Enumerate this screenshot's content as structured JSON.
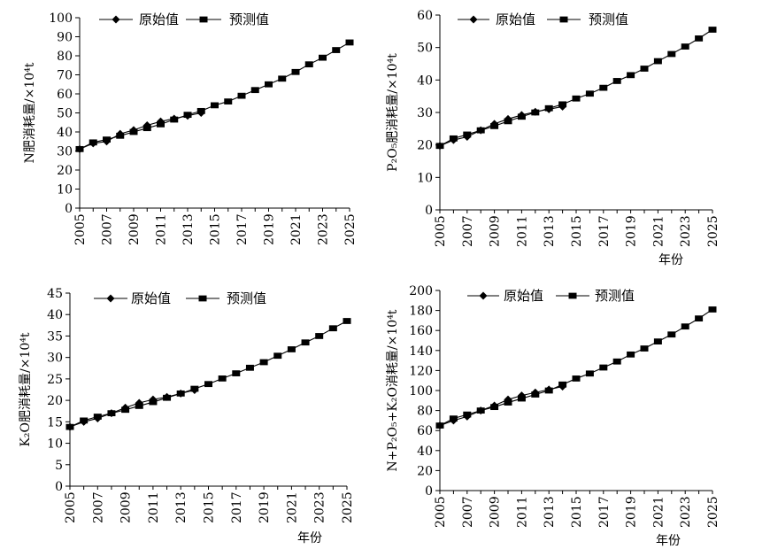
{
  "legend": {
    "original": "原始值",
    "predicted": "预测值"
  },
  "colors": {
    "line": "#000000"
  },
  "chart_data": [
    {
      "type": "line",
      "ylabel": "N肥消耗量/×10⁴t",
      "xlabel": "",
      "ylim": [
        0,
        100
      ],
      "ytick_step": 10,
      "ytick_labels": [
        "0",
        "10",
        "20",
        "30",
        "40",
        "50",
        "60",
        "70",
        "80",
        "90",
        "100"
      ],
      "xlim": [
        2005,
        2025
      ],
      "xtick_labels": [
        "2005",
        "2007",
        "2009",
        "2011",
        "2013",
        "2015",
        "2017",
        "2019",
        "2021",
        "2023",
        "2025"
      ],
      "legend_position": "top",
      "series": [
        {
          "name": "原始值",
          "marker": "diamond",
          "x": [
            2005,
            2006,
            2007,
            2008,
            2009,
            2010,
            2011,
            2012,
            2013,
            2014
          ],
          "y": [
            31,
            34,
            35,
            39,
            41,
            43.5,
            45.5,
            47,
            48.5,
            50
          ]
        },
        {
          "name": "预测值",
          "marker": "square",
          "x": [
            2005,
            2006,
            2007,
            2008,
            2009,
            2010,
            2011,
            2012,
            2013,
            2014,
            2015,
            2016,
            2017,
            2018,
            2019,
            2020,
            2021,
            2022,
            2023,
            2024,
            2025
          ],
          "y": [
            31,
            34.5,
            36,
            38,
            40,
            42,
            44,
            46.5,
            49,
            51,
            54,
            56,
            59,
            62,
            65,
            68,
            71.5,
            75.5,
            79,
            83,
            87
          ]
        }
      ]
    },
    {
      "type": "line",
      "ylabel": "P₂O₅肥消耗量/×10⁴t",
      "xlabel": "年份",
      "ylim": [
        0,
        60
      ],
      "ytick_step": 10,
      "ytick_labels": [
        "0",
        "10",
        "20",
        "30",
        "40",
        "50",
        "60"
      ],
      "xlim": [
        2005,
        2025
      ],
      "xtick_labels": [
        "2005",
        "2007",
        "2009",
        "2011",
        "2013",
        "2015",
        "2017",
        "2019",
        "2021",
        "2023",
        "2025"
      ],
      "legend_position": "top",
      "series": [
        {
          "name": "原始值",
          "marker": "diamond",
          "x": [
            2005,
            2006,
            2007,
            2008,
            2009,
            2010,
            2011,
            2012,
            2013,
            2014
          ],
          "y": [
            19.7,
            21.5,
            22.5,
            24.5,
            26.5,
            28,
            29.2,
            30.2,
            31,
            31.8
          ]
        },
        {
          "name": "预测值",
          "marker": "square",
          "x": [
            2005,
            2006,
            2007,
            2008,
            2009,
            2010,
            2011,
            2012,
            2013,
            2014,
            2015,
            2016,
            2017,
            2018,
            2019,
            2020,
            2021,
            2022,
            2023,
            2024,
            2025
          ],
          "y": [
            19.7,
            22,
            23.2,
            24.5,
            25.8,
            27.3,
            28.7,
            30,
            31.3,
            32.5,
            34.3,
            35.8,
            37.6,
            39.7,
            41.5,
            43.5,
            45.8,
            48,
            50.3,
            52.8,
            55.5
          ]
        }
      ]
    },
    {
      "type": "line",
      "ylabel": "K₂O肥消耗量/×10⁴t",
      "xlabel": "年份",
      "ylim": [
        0,
        45
      ],
      "ytick_step": 5,
      "ytick_labels": [
        "0",
        "5",
        "10",
        "15",
        "20",
        "25",
        "30",
        "35",
        "40",
        "45"
      ],
      "xlim": [
        2005,
        2025
      ],
      "xtick_labels": [
        "2005",
        "2007",
        "2009",
        "2011",
        "2013",
        "2015",
        "2017",
        "2019",
        "2021",
        "2023",
        "2025"
      ],
      "legend_position": "top",
      "series": [
        {
          "name": "原始值",
          "marker": "diamond",
          "x": [
            2005,
            2006,
            2007,
            2008,
            2009,
            2010,
            2011,
            2012,
            2013,
            2014
          ],
          "y": [
            13.8,
            15,
            15.8,
            17,
            18.3,
            19.4,
            20.2,
            20.8,
            21.6,
            22.4
          ]
        },
        {
          "name": "预测值",
          "marker": "square",
          "x": [
            2005,
            2006,
            2007,
            2008,
            2009,
            2010,
            2011,
            2012,
            2013,
            2014,
            2015,
            2016,
            2017,
            2018,
            2019,
            2020,
            2021,
            2022,
            2023,
            2024,
            2025
          ],
          "y": [
            13.8,
            15.3,
            16.2,
            17,
            17.8,
            18.7,
            19.6,
            20.6,
            21.6,
            22.7,
            23.8,
            25.1,
            26.3,
            27.6,
            28.9,
            30.4,
            31.9,
            33.5,
            35,
            36.8,
            38.5
          ]
        }
      ]
    },
    {
      "type": "line",
      "ylabel": "N+P₂O₅+K₂O消耗量/×10⁴t",
      "xlabel": "年份",
      "ylim": [
        0,
        200
      ],
      "ytick_step": 20,
      "ytick_labels": [
        "0",
        "20",
        "40",
        "60",
        "80",
        "100",
        "120",
        "140",
        "160",
        "180",
        "200"
      ],
      "xlim": [
        2005,
        2025
      ],
      "xtick_labels": [
        "2005",
        "2007",
        "2009",
        "2011",
        "2013",
        "2015",
        "2017",
        "2019",
        "2021",
        "2023",
        "2025"
      ],
      "legend_position": "top",
      "series": [
        {
          "name": "原始值",
          "marker": "diamond",
          "x": [
            2005,
            2006,
            2007,
            2008,
            2009,
            2010,
            2011,
            2012,
            2013,
            2014
          ],
          "y": [
            65,
            70,
            74,
            80,
            85,
            91,
            95,
            98,
            101,
            104
          ]
        },
        {
          "name": "预测值",
          "marker": "square",
          "x": [
            2005,
            2006,
            2007,
            2008,
            2009,
            2010,
            2011,
            2012,
            2013,
            2014,
            2015,
            2016,
            2017,
            2018,
            2019,
            2020,
            2021,
            2022,
            2023,
            2024,
            2025
          ],
          "y": [
            65,
            72,
            76,
            80,
            83.5,
            88,
            92,
            96,
            100,
            106,
            112,
            117,
            123,
            129,
            136,
            142,
            149,
            156,
            164,
            172,
            181
          ]
        }
      ]
    }
  ]
}
